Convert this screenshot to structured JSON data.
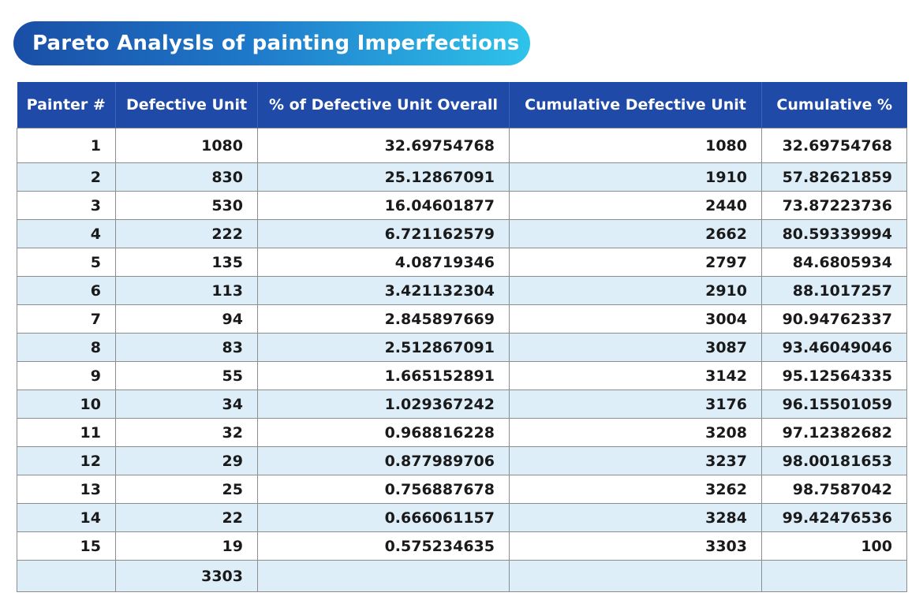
{
  "title": "Pareto Analysls of painting Imperfections",
  "table": {
    "headers": [
      "Painter #",
      "Defective Unit",
      "% of Defective Unit Overall",
      "Cumulative Defective Unit",
      "Cumulative %"
    ],
    "rows": [
      [
        "1",
        "1080",
        "32.69754768",
        "1080",
        "32.69754768"
      ],
      [
        "2",
        "830",
        "25.12867091",
        "1910",
        "57.82621859"
      ],
      [
        "3",
        "530",
        "16.04601877",
        "2440",
        "73.87223736"
      ],
      [
        "4",
        "222",
        "6.721162579",
        "2662",
        "80.59339994"
      ],
      [
        "5",
        "135",
        "4.08719346",
        "2797",
        "84.6805934"
      ],
      [
        "6",
        "113",
        "3.421132304",
        "2910",
        "88.1017257"
      ],
      [
        "7",
        "94",
        "2.845897669",
        "3004",
        "90.94762337"
      ],
      [
        "8",
        "83",
        "2.512867091",
        "3087",
        "93.46049046"
      ],
      [
        "9",
        "55",
        "1.665152891",
        "3142",
        "95.12564335"
      ],
      [
        "10",
        "34",
        "1.029367242",
        "3176",
        "96.15501059"
      ],
      [
        "11",
        "32",
        "0.968816228",
        "3208",
        "97.12382682"
      ],
      [
        "12",
        "29",
        "0.877989706",
        "3237",
        "98.00181653"
      ],
      [
        "13",
        "25",
        "0.756887678",
        "3262",
        "98.7587042"
      ],
      [
        "14",
        "22",
        "0.666061157",
        "3284",
        "99.42476536"
      ],
      [
        "15",
        "19",
        "0.575234635",
        "3303",
        "100"
      ],
      [
        "",
        "3303",
        "",
        "",
        ""
      ]
    ]
  },
  "colors": {
    "header_bg": "#1f4aa8",
    "stripe_bg": "#deeef9",
    "title_gradient_start": "#1a4ea6",
    "title_gradient_end": "#2fc3ea"
  }
}
